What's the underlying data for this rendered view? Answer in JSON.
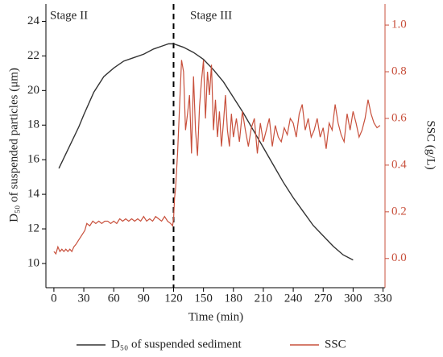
{
  "chart_data": {
    "type": "line",
    "xlabel": "Time (min)",
    "ylabel": "D₅₀ of suspended particles (μm)",
    "y2label": "SSC (g/L)",
    "annotations": [
      "Stage II",
      "Stage III"
    ],
    "divider_x": 120,
    "xlim": [
      -8,
      332
    ],
    "xticks": [
      0,
      30,
      60,
      90,
      120,
      150,
      180,
      210,
      240,
      270,
      300,
      330
    ],
    "ylim": [
      8.6,
      25
    ],
    "yticks": [
      10,
      12,
      14,
      16,
      18,
      20,
      22,
      24
    ],
    "y2lim": [
      -0.125,
      1.09
    ],
    "y2ticks": [
      {
        "value": 0,
        "label": "0.0"
      },
      0.2,
      0.4,
      0.6,
      0.8,
      {
        "value": 1,
        "label": "1.0"
      }
    ],
    "series": [
      {
        "name": "D₅₀ of suspended sediment",
        "color": "#333333",
        "axis": "y",
        "x": [
          5,
          15,
          25,
          30,
          40,
          50,
          60,
          70,
          80,
          90,
          100,
          110,
          115,
          120,
          130,
          140,
          150,
          160,
          170,
          180,
          190,
          200,
          210,
          220,
          230,
          240,
          250,
          260,
          270,
          280,
          290,
          300
        ],
        "values": [
          15.5,
          16.7,
          17.9,
          18.6,
          19.9,
          20.8,
          21.3,
          21.7,
          21.9,
          22.1,
          22.4,
          22.6,
          22.7,
          22.7,
          22.5,
          22.2,
          21.8,
          21.2,
          20.5,
          19.6,
          18.7,
          17.7,
          16.7,
          15.7,
          14.7,
          13.8,
          13.0,
          12.2,
          11.6,
          11.0,
          10.5,
          10.2
        ]
      },
      {
        "name": "SSC",
        "color": "#c8503c",
        "axis": "y2",
        "x": [
          0,
          2,
          4,
          6,
          8,
          10,
          12,
          14,
          16,
          18,
          20,
          22,
          25,
          28,
          31,
          33,
          36,
          39,
          42,
          45,
          48,
          51,
          54,
          57,
          60,
          63,
          66,
          69,
          72,
          75,
          78,
          81,
          84,
          87,
          90,
          93,
          96,
          99,
          102,
          105,
          108,
          111,
          114,
          117,
          119,
          120,
          121,
          122,
          124,
          126,
          128,
          130,
          132,
          134,
          136,
          138,
          140,
          142,
          144,
          146,
          148,
          150,
          152,
          154,
          156,
          158,
          160,
          162,
          164,
          166,
          168,
          170,
          172,
          174,
          176,
          178,
          180,
          183,
          186,
          189,
          192,
          195,
          198,
          201,
          204,
          207,
          210,
          213,
          216,
          219,
          222,
          225,
          228,
          231,
          234,
          237,
          240,
          243,
          246,
          249,
          252,
          255,
          258,
          261,
          264,
          267,
          270,
          273,
          276,
          279,
          282,
          285,
          288,
          291,
          294,
          297,
          300,
          303,
          306,
          309,
          312,
          315,
          318,
          321,
          324,
          327
        ],
        "values": [
          0.03,
          0.02,
          0.05,
          0.03,
          0.04,
          0.03,
          0.04,
          0.03,
          0.04,
          0.03,
          0.05,
          0.06,
          0.08,
          0.1,
          0.12,
          0.15,
          0.14,
          0.16,
          0.15,
          0.16,
          0.15,
          0.16,
          0.16,
          0.15,
          0.16,
          0.15,
          0.17,
          0.16,
          0.17,
          0.16,
          0.17,
          0.16,
          0.17,
          0.16,
          0.18,
          0.16,
          0.17,
          0.16,
          0.18,
          0.17,
          0.16,
          0.18,
          0.16,
          0.15,
          0.14,
          0.17,
          0.26,
          0.3,
          0.45,
          0.65,
          0.85,
          0.8,
          0.55,
          0.62,
          0.7,
          0.45,
          0.78,
          0.55,
          0.44,
          0.65,
          0.76,
          0.85,
          0.6,
          0.8,
          0.7,
          0.83,
          0.55,
          0.68,
          0.52,
          0.63,
          0.48,
          0.58,
          0.7,
          0.55,
          0.48,
          0.62,
          0.52,
          0.6,
          0.5,
          0.63,
          0.55,
          0.48,
          0.56,
          0.6,
          0.45,
          0.58,
          0.5,
          0.55,
          0.6,
          0.48,
          0.57,
          0.52,
          0.5,
          0.56,
          0.53,
          0.6,
          0.58,
          0.52,
          0.62,
          0.66,
          0.55,
          0.6,
          0.52,
          0.55,
          0.6,
          0.52,
          0.56,
          0.47,
          0.58,
          0.55,
          0.66,
          0.58,
          0.53,
          0.5,
          0.62,
          0.55,
          0.63,
          0.58,
          0.52,
          0.55,
          0.6,
          0.68,
          0.62,
          0.58,
          0.56,
          0.57
        ]
      }
    ]
  }
}
